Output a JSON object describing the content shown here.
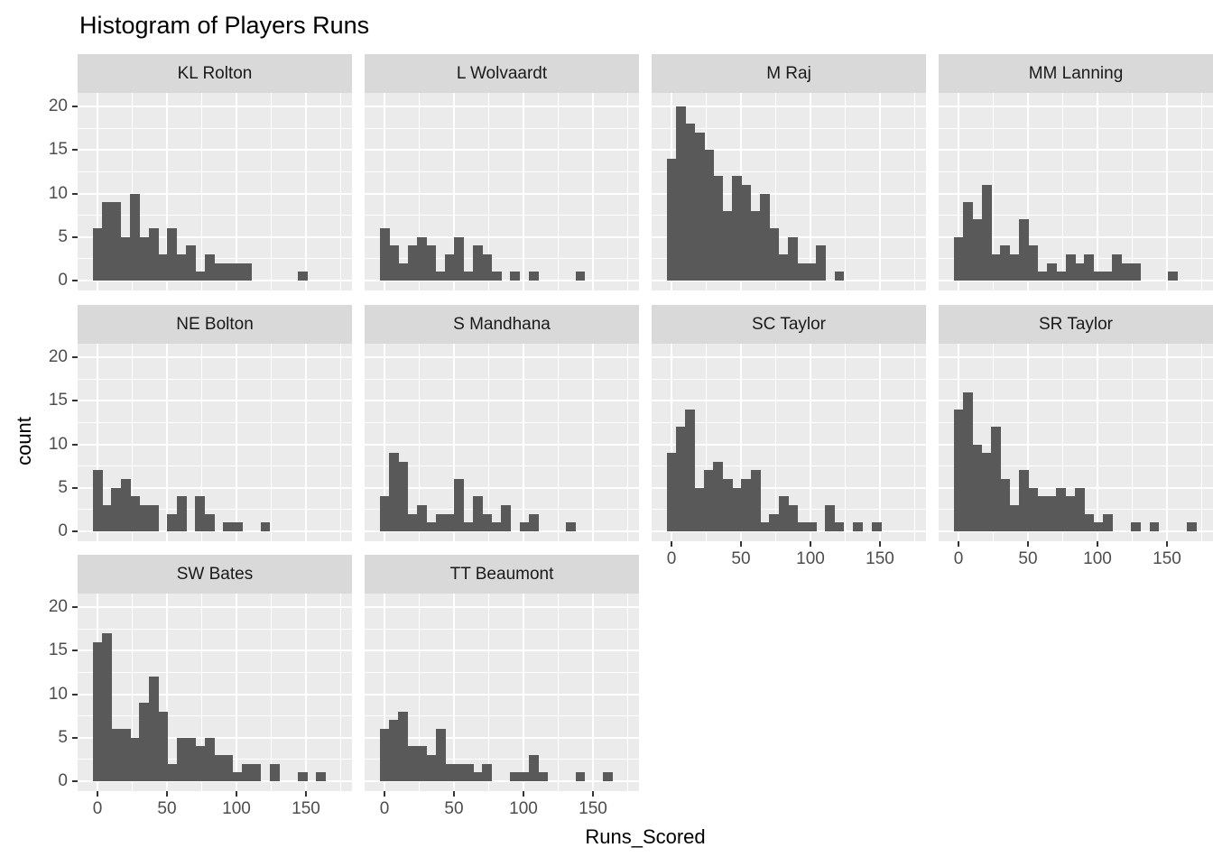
{
  "chart_data": {
    "type": "histogram",
    "title": "Histogram of Players Runs",
    "xlabel": "Runs_Scored",
    "ylabel": "count",
    "x_ticks": [
      0,
      50,
      100,
      150
    ],
    "y_ticks": [
      0,
      5,
      10,
      15,
      20
    ],
    "x_minor_ticks": [
      25,
      75,
      125,
      175
    ],
    "y_minor_ticks": [
      2.5,
      7.5,
      12.5,
      17.5
    ],
    "x_range": [
      -12,
      186
    ],
    "y_range": [
      0,
      21
    ],
    "bin_width": 6.7,
    "bin_start": -3.35,
    "grid": true,
    "legend": "none",
    "facet_grid_columns": 4,
    "facets": [
      {
        "name": "KL Rolton",
        "counts": [
          6,
          9,
          9,
          5,
          10,
          5,
          6,
          3,
          6,
          3,
          4,
          1,
          3,
          2,
          2,
          2,
          2,
          0,
          0,
          0,
          0,
          0,
          1
        ]
      },
      {
        "name": "L Wolvaardt",
        "counts": [
          6,
          4,
          2,
          4,
          5,
          4,
          1,
          3,
          5,
          1,
          4,
          3,
          1,
          0,
          1,
          0,
          1,
          0,
          0,
          0,
          0,
          1
        ]
      },
      {
        "name": "M Raj",
        "counts": [
          14,
          20,
          18,
          17,
          15,
          12,
          8,
          12,
          11,
          8,
          10,
          6,
          3,
          5,
          2,
          2,
          4,
          0,
          1
        ]
      },
      {
        "name": "MM Lanning",
        "counts": [
          5,
          9,
          7,
          11,
          3,
          4,
          3,
          7,
          4,
          1,
          2,
          1,
          3,
          2,
          3,
          1,
          1,
          3,
          2,
          2,
          0,
          0,
          0,
          1
        ]
      },
      {
        "name": "NE Bolton",
        "counts": [
          7,
          3,
          5,
          6,
          4,
          3,
          3,
          0,
          2,
          4,
          0,
          4,
          2,
          0,
          1,
          1,
          0,
          0,
          1
        ]
      },
      {
        "name": "S Mandhana",
        "counts": [
          4,
          9,
          8,
          2,
          3,
          1,
          2,
          2,
          6,
          1,
          4,
          2,
          1,
          3,
          0,
          1,
          2,
          0,
          0,
          0,
          1
        ]
      },
      {
        "name": "SC Taylor",
        "counts": [
          9,
          12,
          14,
          5,
          7,
          8,
          6,
          5,
          6,
          7,
          1,
          2,
          4,
          3,
          1,
          1,
          0,
          3,
          1,
          0,
          1,
          0,
          1
        ]
      },
      {
        "name": "SR Taylor",
        "counts": [
          14,
          16,
          10,
          9,
          12,
          6,
          3,
          7,
          5,
          4,
          4,
          5,
          4,
          5,
          2,
          1,
          2,
          0,
          0,
          1,
          0,
          1,
          0,
          0,
          0,
          1
        ]
      },
      {
        "name": "SW Bates",
        "counts": [
          16,
          17,
          6,
          6,
          5,
          9,
          12,
          8,
          2,
          5,
          5,
          4,
          5,
          3,
          3,
          1,
          2,
          2,
          0,
          2,
          0,
          0,
          1,
          0,
          1
        ]
      },
      {
        "name": "TT Beaumont",
        "counts": [
          6,
          7,
          8,
          4,
          4,
          3,
          6,
          2,
          2,
          2,
          1,
          2,
          0,
          0,
          1,
          1,
          3,
          1,
          0,
          0,
          0,
          1,
          0,
          0,
          1
        ]
      }
    ]
  },
  "style": {
    "bar_color": "#595959",
    "panel_bg": "#EBEBEB",
    "strip_bg": "#D9D9D9",
    "strip_text_color": "#1A1A1A",
    "grid_color": "#FFFFFF",
    "tick_label_color": "#4D4D4D",
    "tick_mark_color": "#333333",
    "title_color": "#000000"
  }
}
